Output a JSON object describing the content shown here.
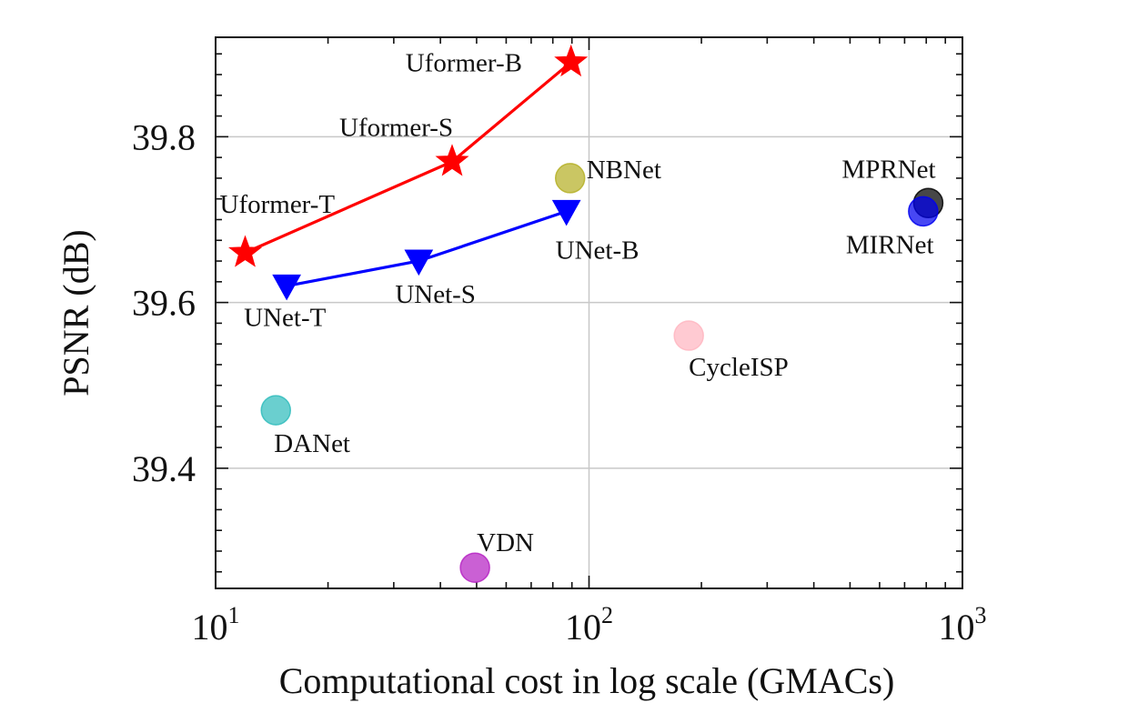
{
  "chart_data": {
    "type": "scatter",
    "xlabel": "Computational cost in log scale (GMACs)",
    "ylabel": "PSNR (dB)",
    "xscale": "log",
    "xlim": [
      10,
      1000
    ],
    "ylim": [
      39.255,
      39.92
    ],
    "grid": true,
    "xticks": [
      {
        "value": 10,
        "base": "10",
        "exp": "1"
      },
      {
        "value": 100,
        "base": "10",
        "exp": "2"
      },
      {
        "value": 1000,
        "base": "10",
        "exp": "3"
      }
    ],
    "yticks": [
      {
        "value": 39.4,
        "label": "39.4"
      },
      {
        "value": 39.6,
        "label": "39.6"
      },
      {
        "value": 39.8,
        "label": "39.8"
      }
    ],
    "series": [
      {
        "marker": "star",
        "color": "#ff0000",
        "line": true,
        "points": [
          {
            "label": "Uformer-T",
            "x": 12,
            "y": 39.66
          },
          {
            "label": "Uformer-S",
            "x": 43,
            "y": 39.77
          },
          {
            "label": "Uformer-B",
            "x": 89.5,
            "y": 39.89
          }
        ]
      },
      {
        "marker": "triangle-down",
        "color": "#0000ff",
        "line": true,
        "points": [
          {
            "label": "UNet-T",
            "x": 15.5,
            "y": 39.62
          },
          {
            "label": "UNet-S",
            "x": 35,
            "y": 39.65
          },
          {
            "label": "UNet-B",
            "x": 87,
            "y": 39.71
          }
        ]
      },
      {
        "marker": "circle",
        "line": false,
        "points": [
          {
            "label": "NBNet",
            "x": 89,
            "y": 39.75,
            "color": "#b5b027"
          },
          {
            "label": "MPRNet",
            "x": 810,
            "y": 39.72,
            "color": "#000000"
          },
          {
            "label": "MIRNet",
            "x": 785,
            "y": 39.71,
            "color": "#0000ee"
          },
          {
            "label": "CycleISP",
            "x": 185,
            "y": 39.56,
            "color": "#ffb6c1"
          },
          {
            "label": "DANet",
            "x": 14.5,
            "y": 39.47,
            "color": "#30bcbc"
          },
          {
            "label": "VDN",
            "x": 49.5,
            "y": 39.28,
            "color": "#b623c3"
          }
        ]
      }
    ]
  }
}
